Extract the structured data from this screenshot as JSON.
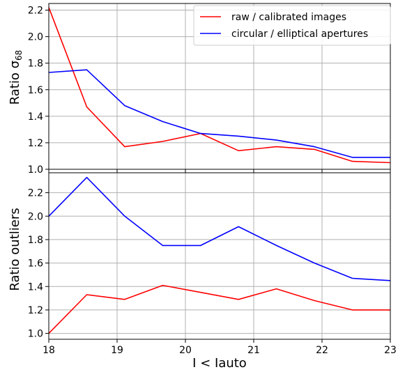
{
  "chart_data": [
    {
      "type": "line",
      "panel": "top",
      "ylabel": "Ratio σ",
      "ylabel_subscript": "68",
      "xlim": [
        18,
        23
      ],
      "ylim": [
        1.0,
        2.25
      ],
      "yticks": [
        1.0,
        1.2,
        1.4,
        1.6,
        1.8,
        2.0,
        2.2
      ],
      "yticks_labels": [
        "1.0",
        "1.2",
        "1.4",
        "1.6",
        "1.8",
        "2.0",
        "2.2"
      ],
      "grid": true,
      "legend_position": "top-right",
      "series": [
        {
          "name": "raw / calibrated images",
          "color": "#ff0000",
          "x": [
            18.0,
            18.556,
            19.111,
            19.667,
            20.222,
            20.778,
            21.333,
            21.889,
            22.444,
            23.0
          ],
          "y": [
            2.22,
            1.47,
            1.17,
            1.21,
            1.27,
            1.14,
            1.17,
            1.15,
            1.06,
            1.05
          ]
        },
        {
          "name": "circular / elliptical apertures",
          "color": "#0000ff",
          "x": [
            18.0,
            18.556,
            19.111,
            19.667,
            20.222,
            20.778,
            21.333,
            21.889,
            22.444,
            23.0
          ],
          "y": [
            1.73,
            1.75,
            1.48,
            1.36,
            1.27,
            1.25,
            1.22,
            1.17,
            1.09,
            1.09
          ]
        }
      ]
    },
    {
      "type": "line",
      "panel": "bottom",
      "ylabel": "Ratio outliers",
      "xlabel": "I < Iauto",
      "xlim": [
        18,
        23
      ],
      "ylim": [
        0.95,
        2.37
      ],
      "xticks": [
        18,
        19,
        20,
        21,
        22,
        23
      ],
      "xticks_labels": [
        "18",
        "19",
        "20",
        "21",
        "22",
        "23"
      ],
      "yticks": [
        1.0,
        1.2,
        1.4,
        1.6,
        1.8,
        2.0,
        2.2
      ],
      "yticks_labels": [
        "1.0",
        "1.2",
        "1.4",
        "1.6",
        "1.8",
        "2.0",
        "2.2"
      ],
      "grid": true,
      "series": [
        {
          "color": "#ff0000",
          "x": [
            18.0,
            18.556,
            19.111,
            19.667,
            20.222,
            20.778,
            21.333,
            21.889,
            22.444,
            23.0
          ],
          "y": [
            1.0,
            1.33,
            1.29,
            1.41,
            1.35,
            1.29,
            1.38,
            1.28,
            1.2,
            1.2
          ]
        },
        {
          "color": "#0000ff",
          "x": [
            18.0,
            18.556,
            19.111,
            19.667,
            20.222,
            20.778,
            21.333,
            21.889,
            22.444,
            23.0
          ],
          "y": [
            2.0,
            2.33,
            2.0,
            1.75,
            1.75,
            1.91,
            1.75,
            1.6,
            1.47,
            1.45
          ]
        }
      ]
    }
  ]
}
